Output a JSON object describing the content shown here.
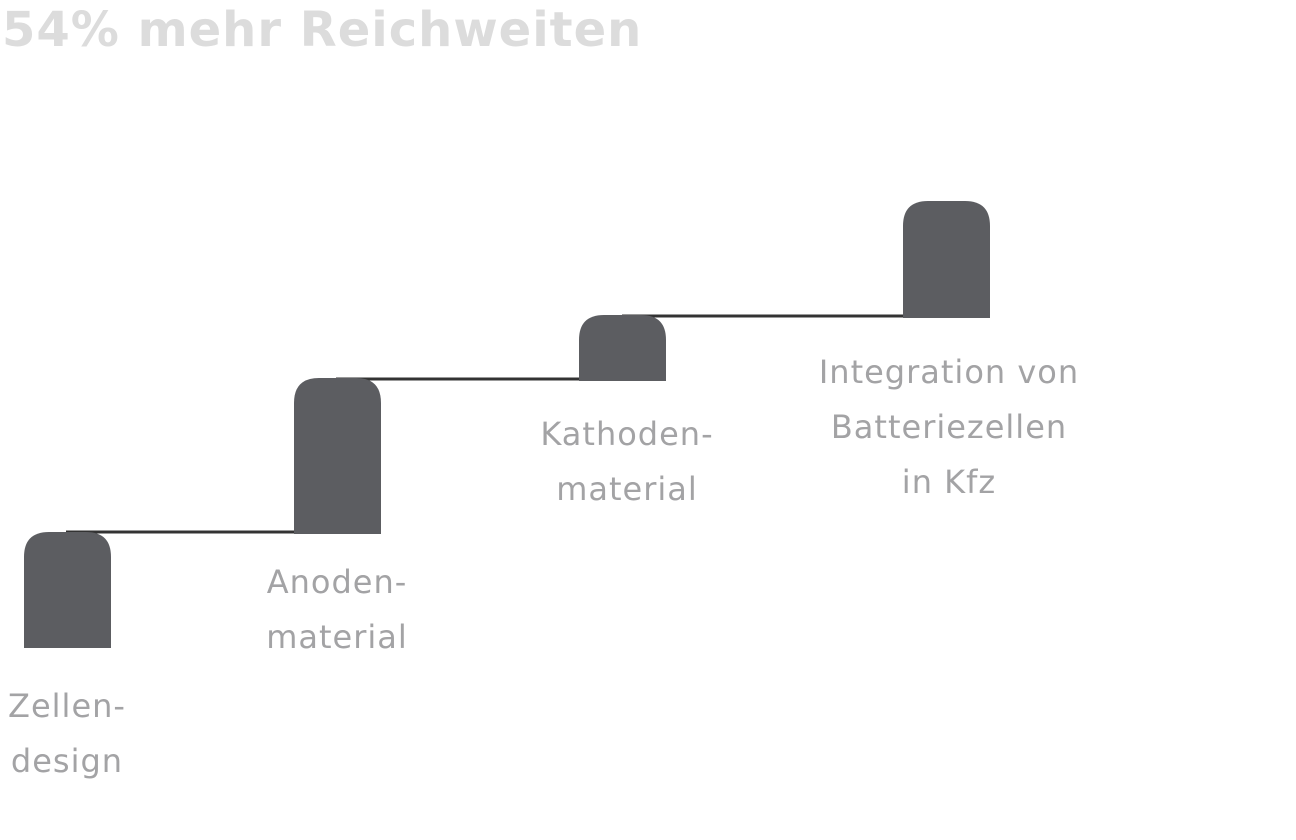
{
  "title": "54% mehr Reichweiten",
  "colors": {
    "block": "#5c5d61",
    "connector": "#333333",
    "label": "#a3a3a5",
    "title": "#dcdcdc"
  },
  "steps": [
    {
      "lines": [
        "Zellen-",
        "design"
      ]
    },
    {
      "lines": [
        "Anoden-",
        "material"
      ]
    },
    {
      "lines": [
        "Kathoden-",
        "material"
      ]
    },
    {
      "lines": [
        "Integration von",
        "Batteriezellen",
        "in Kfz"
      ]
    }
  ]
}
